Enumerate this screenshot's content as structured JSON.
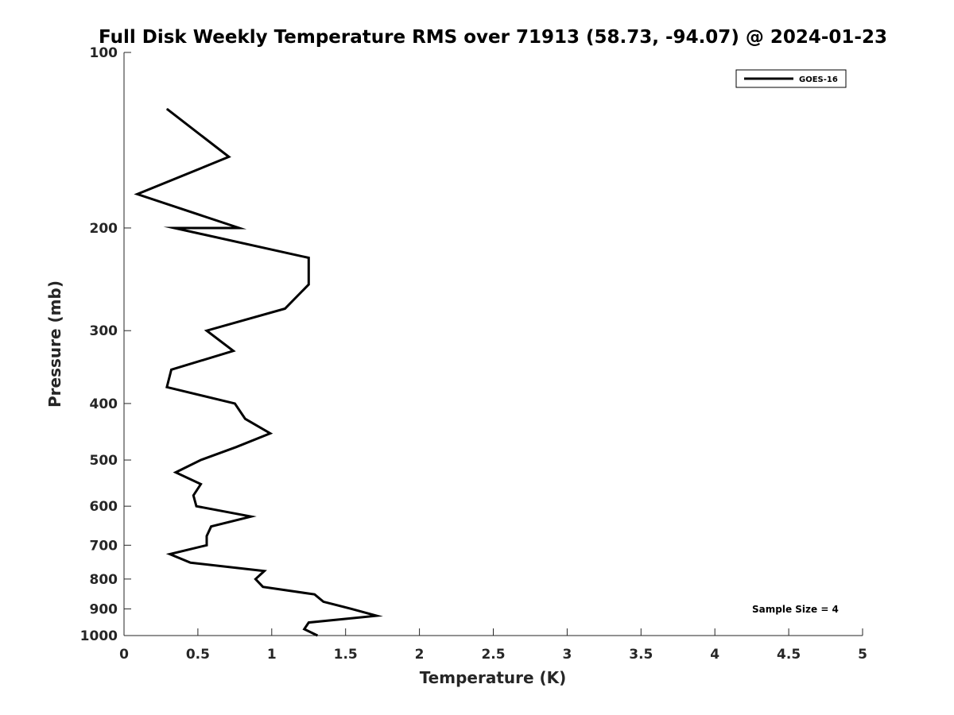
{
  "chart_data": {
    "type": "line",
    "title": "Full Disk Weekly Temperature RMS over 71913 (58.73, -94.07) @ 2024-01-23",
    "xlabel": "Temperature (K)",
    "ylabel": "Pressure (mb)",
    "xlim": [
      0,
      5
    ],
    "ylim": [
      100,
      1000
    ],
    "yscale": "log",
    "y_reversed": true,
    "grid": false,
    "legend_position": "top-right",
    "xticks": [
      0,
      0.5,
      1,
      1.5,
      2,
      2.5,
      3,
      3.5,
      4,
      4.5,
      5
    ],
    "xtick_labels": [
      "0",
      "0.5",
      "1",
      "1.5",
      "2",
      "2.5",
      "3",
      "3.5",
      "4",
      "4.5",
      "5"
    ],
    "yticks": [
      100,
      200,
      300,
      400,
      500,
      600,
      700,
      800,
      900,
      1000
    ],
    "ytick_labels": [
      "100",
      "200",
      "300",
      "400",
      "500",
      "600",
      "700",
      "800",
      "900",
      "1000"
    ],
    "series": [
      {
        "name": "GOES-16",
        "color": "#000000",
        "points": [
          {
            "x": 0.29,
            "y": 125
          },
          {
            "x": 0.71,
            "y": 151
          },
          {
            "x": 0.09,
            "y": 175
          },
          {
            "x": 0.78,
            "y": 200
          },
          {
            "x": 0.34,
            "y": 200
          },
          {
            "x": 1.25,
            "y": 225
          },
          {
            "x": 1.25,
            "y": 250
          },
          {
            "x": 1.09,
            "y": 275
          },
          {
            "x": 0.56,
            "y": 300
          },
          {
            "x": 0.74,
            "y": 325
          },
          {
            "x": 0.32,
            "y": 350
          },
          {
            "x": 0.29,
            "y": 375
          },
          {
            "x": 0.75,
            "y": 400
          },
          {
            "x": 0.82,
            "y": 425
          },
          {
            "x": 0.99,
            "y": 450
          },
          {
            "x": 0.76,
            "y": 475
          },
          {
            "x": 0.52,
            "y": 500
          },
          {
            "x": 0.35,
            "y": 525
          },
          {
            "x": 0.52,
            "y": 550
          },
          {
            "x": 0.47,
            "y": 575
          },
          {
            "x": 0.49,
            "y": 600
          },
          {
            "x": 0.86,
            "y": 625
          },
          {
            "x": 0.59,
            "y": 650
          },
          {
            "x": 0.56,
            "y": 675
          },
          {
            "x": 0.56,
            "y": 700
          },
          {
            "x": 0.31,
            "y": 725
          },
          {
            "x": 0.45,
            "y": 750
          },
          {
            "x": 0.95,
            "y": 775
          },
          {
            "x": 0.89,
            "y": 800
          },
          {
            "x": 0.94,
            "y": 825
          },
          {
            "x": 1.29,
            "y": 850
          },
          {
            "x": 1.35,
            "y": 875
          },
          {
            "x": 1.54,
            "y": 900
          },
          {
            "x": 1.71,
            "y": 925
          },
          {
            "x": 1.25,
            "y": 950
          },
          {
            "x": 1.22,
            "y": 975
          },
          {
            "x": 1.31,
            "y": 1000
          }
        ]
      }
    ],
    "annotation": "Sample Size = 4"
  }
}
